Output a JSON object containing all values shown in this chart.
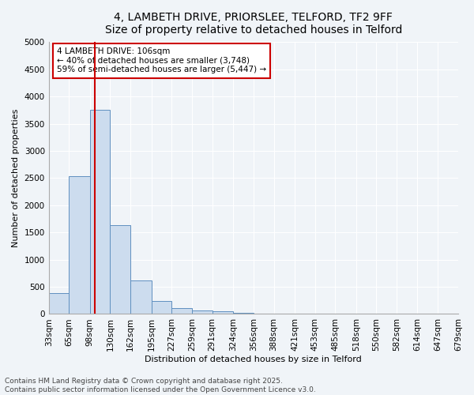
{
  "title_line1": "4, LAMBETH DRIVE, PRIORSLEE, TELFORD, TF2 9FF",
  "title_line2": "Size of property relative to detached houses in Telford",
  "xlabel": "Distribution of detached houses by size in Telford",
  "ylabel": "Number of detached properties",
  "bin_edges": [
    33,
    65,
    98,
    130,
    162,
    195,
    227,
    259,
    291,
    324,
    356,
    388,
    421,
    453,
    485,
    518,
    550,
    582,
    614,
    647,
    679
  ],
  "bar_heights": [
    380,
    2530,
    3760,
    1640,
    620,
    240,
    105,
    60,
    50,
    20,
    0,
    0,
    0,
    0,
    0,
    0,
    0,
    0,
    0,
    0
  ],
  "bar_color": "#ccdcee",
  "bar_edge_color": "#6090c0",
  "red_line_x": 106,
  "red_line_color": "#cc0000",
  "annotation_text": "4 LAMBETH DRIVE: 106sqm\n← 40% of detached houses are smaller (3,748)\n59% of semi-detached houses are larger (5,447) →",
  "annotation_box_color": "#cc0000",
  "annotation_bg": "#ffffff",
  "ylim": [
    0,
    5000
  ],
  "yticks": [
    0,
    500,
    1000,
    1500,
    2000,
    2500,
    3000,
    3500,
    4000,
    4500,
    5000
  ],
  "footer_line1": "Contains HM Land Registry data © Crown copyright and database right 2025.",
  "footer_line2": "Contains public sector information licensed under the Open Government Licence v3.0.",
  "bg_color": "#f0f4f8",
  "plot_bg_color": "#f0f4f8",
  "grid_color": "#ffffff",
  "title_fontsize": 10,
  "subtitle_fontsize": 9,
  "axis_label_fontsize": 8,
  "tick_fontsize": 7.5,
  "annotation_fontsize": 7.5,
  "footer_fontsize": 6.5
}
